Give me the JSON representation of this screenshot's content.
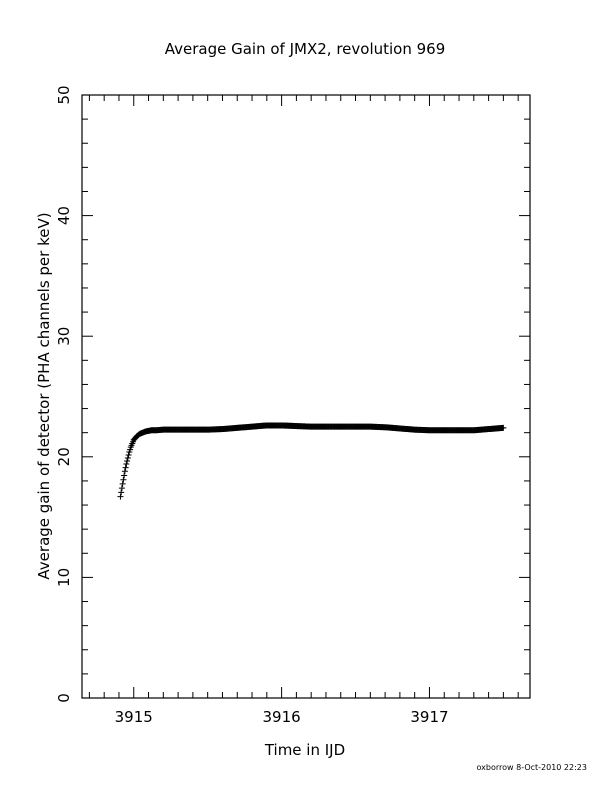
{
  "colors": {
    "background": "#ffffff",
    "ink": "#000000"
  },
  "footer": {
    "credit": "oxborrow   8-Oct-2010 22:23"
  },
  "chart_data": {
    "type": "scatter",
    "title": "Average Gain of JMX2, revolution 969",
    "xlabel": "Time in IJD",
    "ylabel": "Average gain of detector (PHA channels per keV)",
    "xlim": [
      3914.65,
      3917.68
    ],
    "ylim": [
      0,
      50
    ],
    "x_ticks": [
      3915,
      3916,
      3917
    ],
    "x_tick_labels": [
      "3915",
      "3916",
      "3917"
    ],
    "y_ticks": [
      0,
      10,
      20,
      30,
      40,
      50
    ],
    "y_tick_labels": [
      "0",
      "10",
      "20",
      "30",
      "40",
      "50"
    ],
    "marker": "plus",
    "grid": false,
    "series": [
      {
        "x": [
          3914.91,
          3914.92,
          3914.93,
          3914.94,
          3914.95,
          3914.96,
          3914.97,
          3914.98,
          3914.99,
          3915.0,
          3915.02,
          3915.04,
          3915.06,
          3915.08,
          3915.1,
          3915.12,
          3915.15,
          3915.2,
          3915.3,
          3915.4,
          3915.5,
          3915.6,
          3915.7,
          3915.8,
          3915.9,
          3916.0,
          3916.1,
          3916.2,
          3916.3,
          3916.4,
          3916.5,
          3916.6,
          3916.7,
          3916.8,
          3916.9,
          3917.0,
          3917.1,
          3917.2,
          3917.3,
          3917.4,
          3917.5
        ],
        "y": [
          16.7,
          17.4,
          18.1,
          18.8,
          19.4,
          19.9,
          20.4,
          20.8,
          21.1,
          21.4,
          21.7,
          21.9,
          22.0,
          22.1,
          22.15,
          22.2,
          22.2,
          22.25,
          22.25,
          22.25,
          22.25,
          22.3,
          22.4,
          22.5,
          22.6,
          22.6,
          22.55,
          22.5,
          22.5,
          22.5,
          22.5,
          22.5,
          22.45,
          22.35,
          22.25,
          22.2,
          22.2,
          22.2,
          22.2,
          22.3,
          22.4
        ]
      }
    ]
  }
}
